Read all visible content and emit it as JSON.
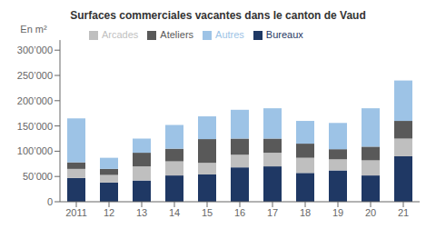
{
  "chart_data": {
    "type": "bar",
    "title": "Surfaces commerciales vacantes dans le canton de Vaud",
    "ylabel": "En m²",
    "categories": [
      "2011",
      "12",
      "13",
      "14",
      "15",
      "16",
      "17",
      "18",
      "19",
      "20",
      "21"
    ],
    "series": [
      {
        "name": "Bureaux",
        "color": "#1f3864",
        "values": [
          47000,
          38000,
          42000,
          52000,
          54000,
          68000,
          70000,
          57000,
          62000,
          52000,
          90000
        ]
      },
      {
        "name": "Arcades",
        "color": "#bfbfbf",
        "values": [
          18000,
          15000,
          28000,
          28000,
          23000,
          25000,
          27000,
          30000,
          22000,
          30000,
          35000
        ]
      },
      {
        "name": "Ateliers",
        "color": "#595959",
        "values": [
          13000,
          12000,
          27000,
          25000,
          47000,
          32000,
          28000,
          28000,
          20000,
          27000,
          35000
        ]
      },
      {
        "name": "Autres",
        "color": "#9dc3e6",
        "values": [
          87000,
          22000,
          28000,
          47000,
          45000,
          57000,
          60000,
          45000,
          52000,
          76000,
          80000
        ]
      }
    ],
    "stacked": true,
    "ylim": [
      0,
      320000
    ],
    "yticks": [
      0,
      {
        "value": 50000,
        "label": "50’000"
      },
      {
        "value": 100000,
        "label": "100’000"
      },
      {
        "value": 150000,
        "label": "150’000"
      },
      {
        "value": 200000,
        "label": "200’000"
      },
      {
        "value": 250000,
        "label": "250’000"
      },
      {
        "value": 300000,
        "label": "300’000"
      }
    ],
    "grid": false,
    "legend": "upper left"
  }
}
